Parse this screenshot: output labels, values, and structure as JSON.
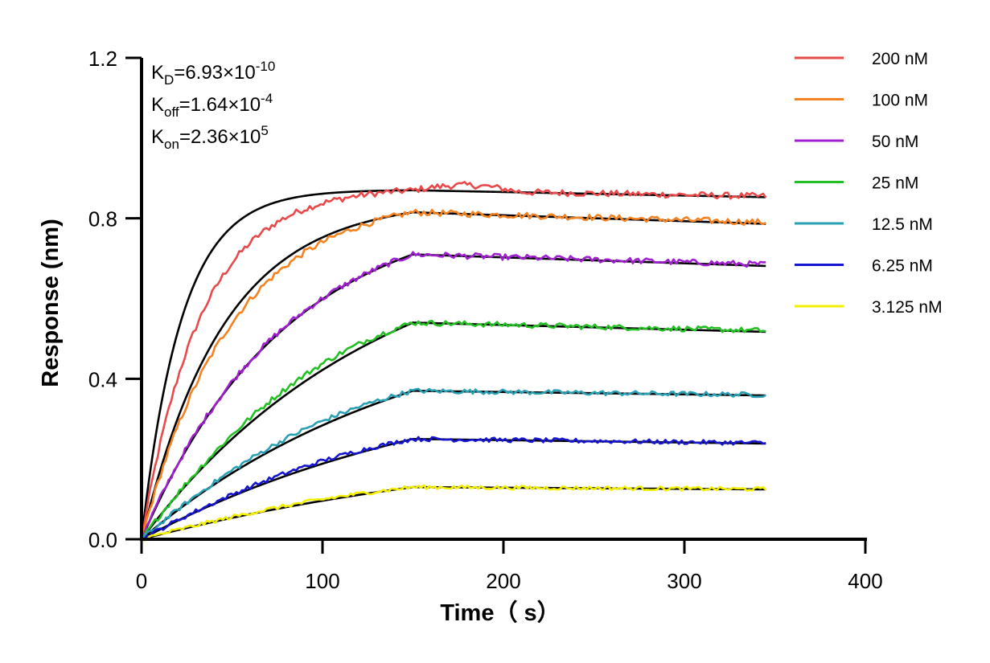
{
  "chart_data": {
    "type": "line",
    "title": "",
    "xlabel": "Time（ s）",
    "ylabel": "Response (nm)",
    "xlim": [
      0,
      400
    ],
    "ylim": [
      0,
      1.2
    ],
    "x_ticks": [
      "0",
      "100",
      "200",
      "300",
      "400"
    ],
    "y_ticks": [
      "0.0",
      "0.4",
      "0.8",
      "1.2"
    ],
    "grid": false,
    "legend_position": "right",
    "association_end": 150,
    "dissociation_end": 345,
    "kinetics": [
      {
        "sym": "K",
        "sub": "D",
        "val": "=6.93×10",
        "exp": "-10"
      },
      {
        "sym": "K",
        "sub": "off",
        "val": "=1.64×10",
        "exp": "-4"
      },
      {
        "sym": "K",
        "sub": "on",
        "val": "=2.36×10",
        "exp": "5"
      }
    ],
    "series": [
      {
        "name": "200 nM",
        "color": "#E8494B",
        "peak": 0.87,
        "end": 0.855
      },
      {
        "name": "100 nM",
        "color": "#F58220",
        "peak": 0.815,
        "end": 0.79
      },
      {
        "name": "50 nM",
        "color": "#A020D0",
        "peak": 0.71,
        "end": 0.685
      },
      {
        "name": "25 nM",
        "color": "#22C022",
        "peak": 0.54,
        "end": 0.52
      },
      {
        "name": "12.5 nM",
        "color": "#2AA0B4",
        "peak": 0.37,
        "end": 0.36
      },
      {
        "name": "6.25 nM",
        "color": "#1515D0",
        "peak": 0.25,
        "end": 0.24
      },
      {
        "name": "3.125 nM",
        "color": "#F2F000",
        "peak": 0.13,
        "end": 0.125
      }
    ],
    "fit_color": "#000000"
  }
}
